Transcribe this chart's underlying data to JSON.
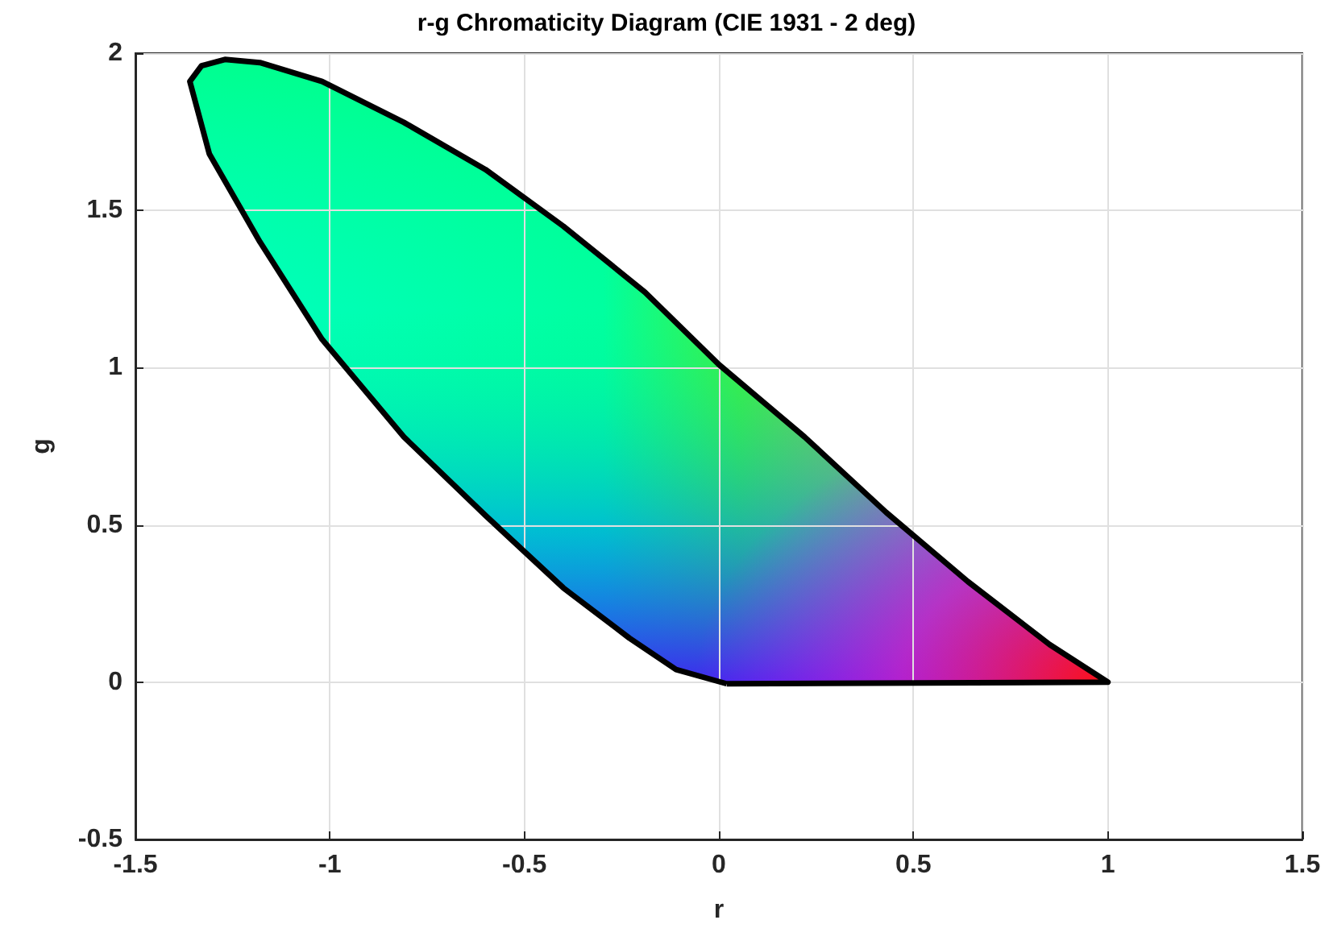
{
  "chart_data": {
    "type": "area",
    "title": "r-g Chromaticity Diagram (CIE 1931 - 2 deg)",
    "xlabel": "r",
    "ylabel": "g",
    "x": [
      0.02,
      -0.11,
      -0.23,
      -0.4,
      -0.6,
      -0.81,
      -1.02,
      -1.18,
      -1.31,
      -1.36,
      -1.33,
      -1.27,
      -1.18,
      -1.02,
      -0.81,
      -0.6,
      -0.4,
      -0.19,
      0,
      0.22,
      0.43,
      0.64,
      0.85,
      1,
      0.02
    ],
    "series": [
      {
        "color": "#000000",
        "values": [
          -0.005,
          0.04,
          0.14,
          0.3,
          0.53,
          0.78,
          1.09,
          1.4,
          1.68,
          1.91,
          1.96,
          1.98,
          1.97,
          1.91,
          1.78,
          1.63,
          1.45,
          1.24,
          1.01,
          0.78,
          0.54,
          0.32,
          0.12,
          0,
          -0.005
        ]
      }
    ],
    "xlim": [
      -1.5,
      1.5
    ],
    "ylim": [
      -0.5,
      2
    ],
    "xticks": [
      -1.5,
      -1,
      -0.5,
      0,
      0.5,
      1,
      1.5
    ],
    "yticks": [
      -0.5,
      0,
      0.5,
      1,
      1.5,
      2
    ],
    "grid": true,
    "marker": "none"
  }
}
